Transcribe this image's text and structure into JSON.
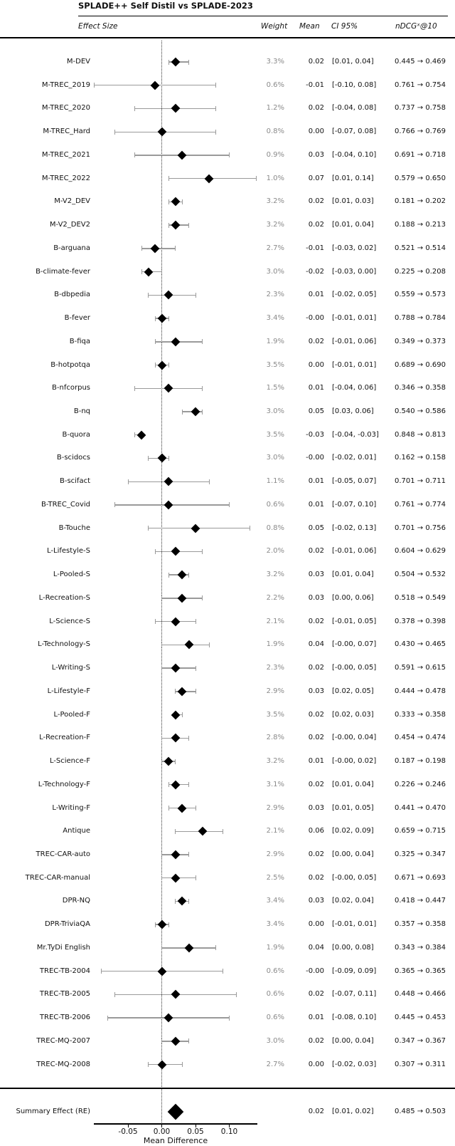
{
  "chart_data": {
    "type": "forest",
    "title": "SPLADE++ Self Distil vs SPLADE-2023",
    "columns": {
      "effect_size": "Effect Size",
      "weight": "Weight",
      "mean": "Mean",
      "ci": "CI 95%",
      "ndcg": "nDCGˣ@10"
    },
    "xlabel": "Mean Difference",
    "x_ticks": [
      "-0.05",
      "0.00",
      "0.05",
      "0.10"
    ],
    "xlim": [
      -0.1,
      0.14
    ],
    "zero_reference": 0.0,
    "rows": [
      {
        "label": "M-DEV",
        "weight": "3.3%",
        "mean": "0.02",
        "ci": "[0.01, 0.04]",
        "ndcg": "0.445 → 0.469"
      },
      {
        "label": "M-TREC_2019",
        "weight": "0.6%",
        "mean": "-0.01",
        "ci": "[-0.10, 0.08]",
        "ndcg": "0.761 → 0.754"
      },
      {
        "label": "M-TREC_2020",
        "weight": "1.2%",
        "mean": "0.02",
        "ci": "[-0.04, 0.08]",
        "ndcg": "0.737 → 0.758"
      },
      {
        "label": "M-TREC_Hard",
        "weight": "0.8%",
        "mean": "0.00",
        "ci": "[-0.07, 0.08]",
        "ndcg": "0.766 → 0.769"
      },
      {
        "label": "M-TREC_2021",
        "weight": "0.9%",
        "mean": "0.03",
        "ci": "[-0.04, 0.10]",
        "ndcg": "0.691 → 0.718"
      },
      {
        "label": "M-TREC_2022",
        "weight": "1.0%",
        "mean": "0.07",
        "ci": "[0.01, 0.14]",
        "ndcg": "0.579 → 0.650"
      },
      {
        "label": "M-V2_DEV",
        "weight": "3.2%",
        "mean": "0.02",
        "ci": "[0.01, 0.03]",
        "ndcg": "0.181 → 0.202"
      },
      {
        "label": "M-V2_DEV2",
        "weight": "3.2%",
        "mean": "0.02",
        "ci": "[0.01, 0.04]",
        "ndcg": "0.188 → 0.213"
      },
      {
        "label": "B-arguana",
        "weight": "2.7%",
        "mean": "-0.01",
        "ci": "[-0.03, 0.02]",
        "ndcg": "0.521 → 0.514"
      },
      {
        "label": "B-climate-fever",
        "weight": "3.0%",
        "mean": "-0.02",
        "ci": "[-0.03, 0.00]",
        "ndcg": "0.225 → 0.208"
      },
      {
        "label": "B-dbpedia",
        "weight": "2.3%",
        "mean": "0.01",
        "ci": "[-0.02, 0.05]",
        "ndcg": "0.559 → 0.573"
      },
      {
        "label": "B-fever",
        "weight": "3.4%",
        "mean": "-0.00",
        "ci": "[-0.01, 0.01]",
        "ndcg": "0.788 → 0.784"
      },
      {
        "label": "B-fiqa",
        "weight": "1.9%",
        "mean": "0.02",
        "ci": "[-0.01, 0.06]",
        "ndcg": "0.349 → 0.373"
      },
      {
        "label": "B-hotpotqa",
        "weight": "3.5%",
        "mean": "0.00",
        "ci": "[-0.01, 0.01]",
        "ndcg": "0.689 → 0.690"
      },
      {
        "label": "B-nfcorpus",
        "weight": "1.5%",
        "mean": "0.01",
        "ci": "[-0.04, 0.06]",
        "ndcg": "0.346 → 0.358"
      },
      {
        "label": "B-nq",
        "weight": "3.0%",
        "mean": "0.05",
        "ci": "[0.03, 0.06]",
        "ndcg": "0.540 → 0.586"
      },
      {
        "label": "B-quora",
        "weight": "3.5%",
        "mean": "-0.03",
        "ci": "[-0.04, -0.03]",
        "ndcg": "0.848 → 0.813"
      },
      {
        "label": "B-scidocs",
        "weight": "3.0%",
        "mean": "-0.00",
        "ci": "[-0.02, 0.01]",
        "ndcg": "0.162 → 0.158"
      },
      {
        "label": "B-scifact",
        "weight": "1.1%",
        "mean": "0.01",
        "ci": "[-0.05, 0.07]",
        "ndcg": "0.701 → 0.711"
      },
      {
        "label": "B-TREC_Covid",
        "weight": "0.6%",
        "mean": "0.01",
        "ci": "[-0.07, 0.10]",
        "ndcg": "0.761 → 0.774"
      },
      {
        "label": "B-Touche",
        "weight": "0.8%",
        "mean": "0.05",
        "ci": "[-0.02, 0.13]",
        "ndcg": "0.701 → 0.756"
      },
      {
        "label": "L-Lifestyle-S",
        "weight": "2.0%",
        "mean": "0.02",
        "ci": "[-0.01, 0.06]",
        "ndcg": "0.604 → 0.629"
      },
      {
        "label": "L-Pooled-S",
        "weight": "3.2%",
        "mean": "0.03",
        "ci": "[0.01, 0.04]",
        "ndcg": "0.504 → 0.532"
      },
      {
        "label": "L-Recreation-S",
        "weight": "2.2%",
        "mean": "0.03",
        "ci": "[0.00, 0.06]",
        "ndcg": "0.518 → 0.549"
      },
      {
        "label": "L-Science-S",
        "weight": "2.1%",
        "mean": "0.02",
        "ci": "[-0.01, 0.05]",
        "ndcg": "0.378 → 0.398"
      },
      {
        "label": "L-Technology-S",
        "weight": "1.9%",
        "mean": "0.04",
        "ci": "[-0.00, 0.07]",
        "ndcg": "0.430 → 0.465"
      },
      {
        "label": "L-Writing-S",
        "weight": "2.3%",
        "mean": "0.02",
        "ci": "[-0.00, 0.05]",
        "ndcg": "0.591 → 0.615"
      },
      {
        "label": "L-Lifestyle-F",
        "weight": "2.9%",
        "mean": "0.03",
        "ci": "[0.02, 0.05]",
        "ndcg": "0.444 → 0.478"
      },
      {
        "label": "L-Pooled-F",
        "weight": "3.5%",
        "mean": "0.02",
        "ci": "[0.02, 0.03]",
        "ndcg": "0.333 → 0.358"
      },
      {
        "label": "L-Recreation-F",
        "weight": "2.8%",
        "mean": "0.02",
        "ci": "[-0.00, 0.04]",
        "ndcg": "0.454 → 0.474"
      },
      {
        "label": "L-Science-F",
        "weight": "3.2%",
        "mean": "0.01",
        "ci": "[-0.00, 0.02]",
        "ndcg": "0.187 → 0.198"
      },
      {
        "label": "L-Technology-F",
        "weight": "3.1%",
        "mean": "0.02",
        "ci": "[0.01, 0.04]",
        "ndcg": "0.226 → 0.246"
      },
      {
        "label": "L-Writing-F",
        "weight": "2.9%",
        "mean": "0.03",
        "ci": "[0.01, 0.05]",
        "ndcg": "0.441 → 0.470"
      },
      {
        "label": "Antique",
        "weight": "2.1%",
        "mean": "0.06",
        "ci": "[0.02, 0.09]",
        "ndcg": "0.659 → 0.715"
      },
      {
        "label": "TREC-CAR-auto",
        "weight": "2.9%",
        "mean": "0.02",
        "ci": "[0.00, 0.04]",
        "ndcg": "0.325 → 0.347"
      },
      {
        "label": "TREC-CAR-manual",
        "weight": "2.5%",
        "mean": "0.02",
        "ci": "[-0.00, 0.05]",
        "ndcg": "0.671 → 0.693"
      },
      {
        "label": "DPR-NQ",
        "weight": "3.4%",
        "mean": "0.03",
        "ci": "[0.02, 0.04]",
        "ndcg": "0.418 → 0.447"
      },
      {
        "label": "DPR-TriviaQA",
        "weight": "3.4%",
        "mean": "0.00",
        "ci": "[-0.01, 0.01]",
        "ndcg": "0.357 → 0.358"
      },
      {
        "label": "Mr.TyDi English",
        "weight": "1.9%",
        "mean": "0.04",
        "ci": "[0.00, 0.08]",
        "ndcg": "0.343 → 0.384"
      },
      {
        "label": "TREC-TB-2004",
        "weight": "0.6%",
        "mean": "-0.00",
        "ci": "[-0.09, 0.09]",
        "ndcg": "0.365 → 0.365"
      },
      {
        "label": "TREC-TB-2005",
        "weight": "0.6%",
        "mean": "0.02",
        "ci": "[-0.07, 0.11]",
        "ndcg": "0.448 → 0.466"
      },
      {
        "label": "TREC-TB-2006",
        "weight": "0.6%",
        "mean": "0.01",
        "ci": "[-0.08, 0.10]",
        "ndcg": "0.445 → 0.453"
      },
      {
        "label": "TREC-MQ-2007",
        "weight": "3.0%",
        "mean": "0.02",
        "ci": "[0.00, 0.04]",
        "ndcg": "0.347 → 0.367"
      },
      {
        "label": "TREC-MQ-2008",
        "weight": "2.7%",
        "mean": "0.00",
        "ci": "[-0.02, 0.03]",
        "ndcg": "0.307 → 0.311"
      }
    ],
    "summary": {
      "label": "Summary Effect (RE)",
      "mean": "0.02",
      "ci": "[0.01, 0.02]",
      "ndcg": "0.485 → 0.503"
    },
    "colors": {
      "marker": "#000000",
      "ci_bar": "#9a9a9a",
      "weight_text": "#8a8a8a",
      "background": "#ffffff"
    }
  }
}
